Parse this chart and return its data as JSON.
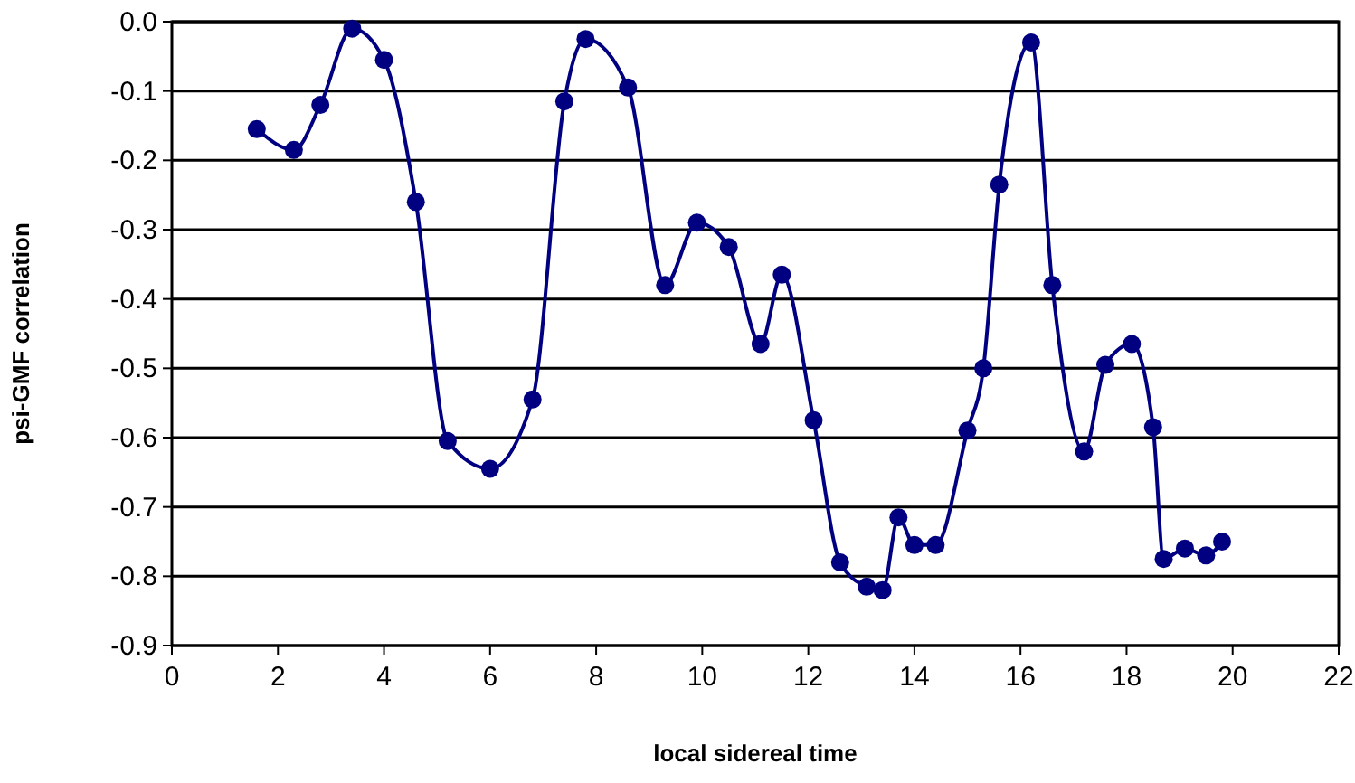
{
  "chart_data": {
    "type": "line",
    "xlabel": "local sidereal time",
    "ylabel": "psi-GMF correlation",
    "xlim": [
      0,
      22
    ],
    "xticks": [
      0,
      2,
      4,
      6,
      8,
      10,
      12,
      14,
      16,
      18,
      20,
      22
    ],
    "ylim": [
      -0.9,
      0
    ],
    "yticks": [
      {
        "value": 0,
        "label": "0.0"
      },
      -0.1,
      -0.2,
      -0.3,
      -0.4,
      -0.5,
      -0.6,
      -0.7,
      -0.8,
      -0.9
    ],
    "grid": "y",
    "marker": "circle",
    "line_style": "solid",
    "x": [
      1.6,
      2.3,
      2.8,
      3.4,
      4.0,
      4.6,
      5.2,
      6.0,
      6.8,
      7.4,
      7.8,
      8.6,
      9.3,
      9.9,
      10.5,
      11.1,
      11.5,
      12.1,
      12.6,
      13.1,
      13.4,
      13.7,
      14.0,
      14.4,
      15.0,
      15.3,
      15.6,
      16.2,
      16.6,
      17.2,
      17.6,
      18.1,
      18.5,
      18.7,
      19.1,
      19.5,
      19.8
    ],
    "series": [
      {
        "color": "#000080",
        "values": [
          -0.155,
          -0.185,
          -0.12,
          -0.01,
          -0.055,
          -0.26,
          -0.605,
          -0.645,
          -0.545,
          -0.115,
          -0.025,
          -0.095,
          -0.38,
          -0.29,
          -0.325,
          -0.465,
          -0.365,
          -0.575,
          -0.78,
          -0.815,
          -0.82,
          -0.715,
          -0.755,
          -0.755,
          -0.59,
          -0.5,
          -0.235,
          -0.03,
          -0.38,
          -0.62,
          -0.495,
          -0.465,
          -0.585,
          -0.775,
          -0.76,
          -0.77,
          -0.75
        ]
      }
    ]
  }
}
